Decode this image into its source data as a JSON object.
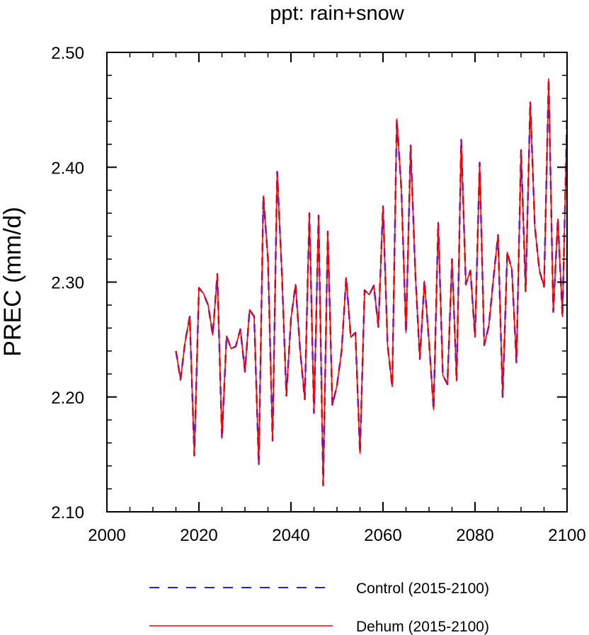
{
  "chart_data": {
    "type": "line",
    "title": "ppt: rain+snow",
    "xlabel": "",
    "ylabel": "PREC  (mm/d)",
    "xlim": [
      2000,
      2100
    ],
    "ylim": [
      2.1,
      2.5
    ],
    "x_ticks": [
      2000,
      2020,
      2040,
      2060,
      2080,
      2100
    ],
    "x_tick_labels": [
      "2000",
      "2020",
      "2040",
      "2060",
      "2080",
      "2100"
    ],
    "y_ticks": [
      2.1,
      2.2,
      2.3,
      2.4,
      2.5
    ],
    "y_tick_labels": [
      "2.10",
      "2.20",
      "2.30",
      "2.40",
      "2.50"
    ],
    "grid": false,
    "legend_position": "bottom",
    "x": [
      2015,
      2016,
      2017,
      2018,
      2019,
      2020,
      2021,
      2022,
      2023,
      2024,
      2025,
      2026,
      2027,
      2028,
      2029,
      2030,
      2031,
      2032,
      2033,
      2034,
      2035,
      2036,
      2037,
      2038,
      2039,
      2040,
      2041,
      2042,
      2043,
      2044,
      2045,
      2046,
      2047,
      2048,
      2049,
      2050,
      2051,
      2052,
      2053,
      2054,
      2055,
      2056,
      2057,
      2058,
      2059,
      2060,
      2061,
      2062,
      2063,
      2064,
      2065,
      2066,
      2067,
      2068,
      2069,
      2070,
      2071,
      2072,
      2073,
      2074,
      2075,
      2076,
      2077,
      2078,
      2079,
      2080,
      2081,
      2082,
      2083,
      2084,
      2085,
      2086,
      2087,
      2088,
      2089,
      2090,
      2091,
      2092,
      2093,
      2094,
      2095,
      2096,
      2097,
      2098,
      2099,
      2100
    ],
    "series": [
      {
        "name": "Control (2015-2100)",
        "color": "#0000ff",
        "dash": "dashed",
        "values": [
          2.24,
          2.215,
          2.248,
          2.27,
          2.149,
          2.295,
          2.29,
          2.28,
          2.254,
          2.307,
          2.164,
          2.253,
          2.242,
          2.244,
          2.259,
          2.222,
          2.276,
          2.27,
          2.141,
          2.375,
          2.32,
          2.162,
          2.396,
          2.31,
          2.201,
          2.268,
          2.298,
          2.24,
          2.198,
          2.36,
          2.186,
          2.358,
          2.123,
          2.344,
          2.193,
          2.21,
          2.24,
          2.304,
          2.252,
          2.256,
          2.151,
          2.293,
          2.289,
          2.297,
          2.261,
          2.366,
          2.245,
          2.209,
          2.442,
          2.38,
          2.256,
          2.419,
          2.31,
          2.233,
          2.301,
          2.248,
          2.189,
          2.352,
          2.219,
          2.211,
          2.32,
          2.214,
          2.424,
          2.298,
          2.31,
          2.252,
          2.404,
          2.245,
          2.262,
          2.303,
          2.341,
          2.2,
          2.326,
          2.311,
          2.23,
          2.415,
          2.292,
          2.457,
          2.348,
          2.31,
          2.296,
          2.477,
          2.274,
          2.355,
          2.27,
          2.444
        ]
      },
      {
        "name": "Dehum (2015-2100)",
        "color": "#ff0000",
        "dash": "solid",
        "values": [
          2.24,
          2.215,
          2.248,
          2.27,
          2.149,
          2.295,
          2.29,
          2.28,
          2.254,
          2.307,
          2.164,
          2.253,
          2.242,
          2.244,
          2.259,
          2.222,
          2.276,
          2.27,
          2.141,
          2.375,
          2.32,
          2.162,
          2.396,
          2.31,
          2.201,
          2.268,
          2.298,
          2.24,
          2.198,
          2.36,
          2.186,
          2.358,
          2.123,
          2.344,
          2.193,
          2.21,
          2.24,
          2.304,
          2.252,
          2.256,
          2.151,
          2.293,
          2.289,
          2.297,
          2.261,
          2.366,
          2.245,
          2.209,
          2.442,
          2.38,
          2.256,
          2.419,
          2.31,
          2.233,
          2.301,
          2.248,
          2.189,
          2.352,
          2.219,
          2.211,
          2.32,
          2.214,
          2.424,
          2.298,
          2.31,
          2.252,
          2.404,
          2.245,
          2.262,
          2.303,
          2.341,
          2.2,
          2.326,
          2.311,
          2.23,
          2.415,
          2.292,
          2.457,
          2.348,
          2.31,
          2.296,
          2.477,
          2.274,
          2.355,
          2.27,
          2.444
        ]
      }
    ]
  }
}
